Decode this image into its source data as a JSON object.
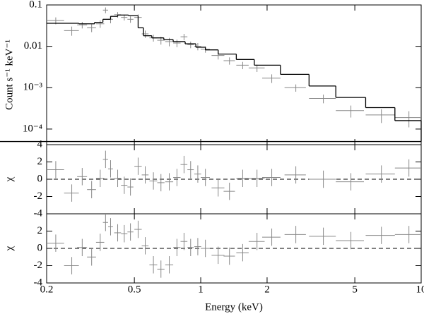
{
  "chart_data": [
    {
      "type": "spectrum",
      "ylabel": "Count s⁻¹ keV⁻¹",
      "log_x": true,
      "log_y": true,
      "xlim": [
        0.2,
        10
      ],
      "ylim": [
        4.2e-05,
        0.1
      ],
      "yticks": [
        0.1,
        0.01,
        {
          "value": 0.001,
          "label": "10⁻³"
        },
        {
          "value": 0.0001,
          "label": "10⁻⁴"
        }
      ],
      "color": "#888888",
      "model_color": "#000000",
      "x": [
        0.22,
        0.26,
        0.29,
        0.32,
        0.35,
        0.37,
        0.39,
        0.42,
        0.45,
        0.48,
        0.52,
        0.56,
        0.61,
        0.66,
        0.72,
        0.78,
        0.84,
        0.9,
        0.97,
        1.05,
        1.2,
        1.35,
        1.55,
        1.8,
        2.1,
        2.7,
        3.6,
        4.8,
        6.6,
        8.8
      ],
      "x_err": [
        0.02,
        0.02,
        0.015,
        0.015,
        0.015,
        0.01,
        0.01,
        0.015,
        0.015,
        0.015,
        0.02,
        0.02,
        0.025,
        0.025,
        0.03,
        0.03,
        0.03,
        0.03,
        0.035,
        0.05,
        0.08,
        0.08,
        0.1,
        0.15,
        0.2,
        0.3,
        0.5,
        0.7,
        1.0,
        1.2
      ],
      "values": [
        0.042,
        0.024,
        0.033,
        0.028,
        0.035,
        0.075,
        0.045,
        0.058,
        0.05,
        0.045,
        0.05,
        0.02,
        0.016,
        0.014,
        0.013,
        0.012,
        0.017,
        0.011,
        0.01,
        0.0085,
        0.006,
        0.0045,
        0.0035,
        0.003,
        0.0017,
        0.001,
        0.00055,
        0.00028,
        0.00022,
        0.00019
      ],
      "errors": [
        0.008,
        0.006,
        0.006,
        0.006,
        0.007,
        0.012,
        0.009,
        0.009,
        0.008,
        0.008,
        0.009,
        0.004,
        0.003,
        0.003,
        0.003,
        0.0025,
        0.003,
        0.002,
        0.002,
        0.0015,
        0.0012,
        0.0009,
        0.0007,
        0.0006,
        0.0004,
        0.0002,
        0.00013,
        9e-05,
        8e-05,
        8e-05
      ],
      "model": {
        "bins": [
          0.2,
          0.28,
          0.33,
          0.36,
          0.39,
          0.42,
          0.47,
          0.52,
          0.55,
          0.6,
          0.68,
          0.75,
          0.85,
          0.95,
          1.05,
          1.2,
          1.45,
          1.75,
          2.3,
          3.1,
          4.1,
          5.6,
          7.6,
          10
        ],
        "values": [
          0.036,
          0.035,
          0.038,
          0.045,
          0.053,
          0.057,
          0.055,
          0.028,
          0.018,
          0.016,
          0.0145,
          0.013,
          0.0115,
          0.0095,
          0.0082,
          0.0065,
          0.0048,
          0.0035,
          0.0021,
          0.0011,
          0.00058,
          0.00033,
          0.00016,
          5e-05
        ]
      }
    },
    {
      "type": "residual",
      "ylabel": "χ",
      "log_x": true,
      "xlim": [
        0.2,
        10
      ],
      "ylim": [
        -4,
        4
      ],
      "yticks": [
        -4,
        -2,
        0,
        2,
        4
      ],
      "reference_line": 0,
      "color": "#888888",
      "values": [
        1.1,
        -1.6,
        0.3,
        -1.2,
        0.1,
        2.3,
        1.2,
        0.1,
        -0.7,
        -0.9,
        1.5,
        0.5,
        -0.2,
        -0.4,
        -0.3,
        0.2,
        1.7,
        1.1,
        0.6,
        0.2,
        -1.0,
        -1.4,
        0.1,
        0.1,
        0.2,
        0.5,
        0.0,
        -0.3,
        0.6,
        1.3
      ],
      "errors": [
        1,
        1,
        1,
        1,
        1,
        1,
        1,
        1,
        1,
        1,
        1,
        1,
        1,
        1,
        1,
        1,
        1,
        1,
        1,
        1,
        1,
        1,
        1,
        1,
        1,
        1,
        1,
        1,
        1,
        1
      ]
    },
    {
      "type": "residual",
      "ylabel": "χ",
      "xlabel": "Energy (keV)",
      "log_x": true,
      "xlim": [
        0.2,
        10
      ],
      "ylim": [
        -4,
        4
      ],
      "yticks": [
        -4,
        -2,
        0,
        2
      ],
      "xticks": [
        0.2,
        0.5,
        1,
        2,
        5,
        10
      ],
      "reference_line": 0,
      "color": "#888888",
      "values": [
        0.6,
        -2.0,
        0.1,
        -1.0,
        0.7,
        3.0,
        2.5,
        1.8,
        1.7,
        1.9,
        2.2,
        0.3,
        -1.9,
        -2.4,
        -1.9,
        0.1,
        0.8,
        0.1,
        0.2,
        0.0,
        -0.8,
        -0.9,
        -0.5,
        0.8,
        1.3,
        1.6,
        1.4,
        0.9,
        1.5,
        1.6
      ],
      "errors": [
        1,
        1,
        1,
        1,
        1,
        1,
        1,
        1,
        1,
        1,
        1,
        1,
        1,
        1,
        1,
        1,
        1,
        1,
        1,
        1,
        1,
        1,
        1,
        1,
        1,
        1,
        1,
        1,
        1,
        1
      ]
    }
  ]
}
